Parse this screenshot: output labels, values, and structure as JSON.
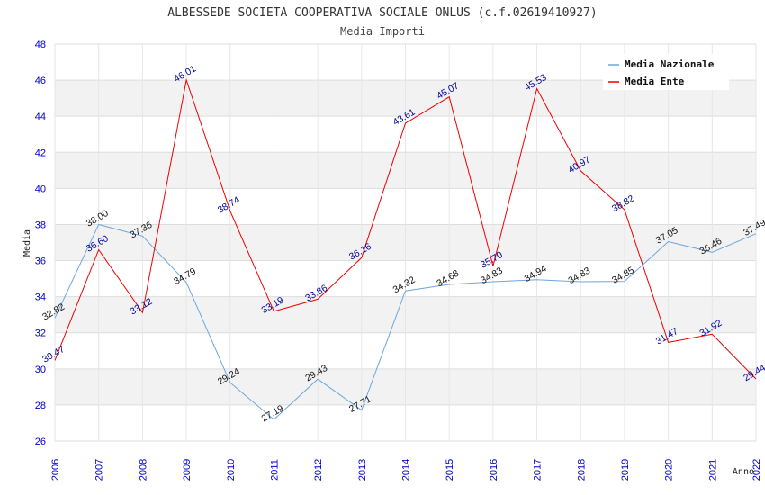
{
  "chart_data": {
    "type": "line",
    "title": "ALBESSEDE SOCIETA COOPERATIVA SOCIALE ONLUS (c.f.02619410927)",
    "subtitle": "Media Importi",
    "xlabel": "Anno",
    "ylabel": "Media",
    "ylim": [
      26,
      48
    ],
    "yticks": [
      "26",
      "28",
      "30",
      "32",
      "34",
      "36",
      "38",
      "40",
      "42",
      "44",
      "46",
      "48"
    ],
    "categories": [
      "2006",
      "2007",
      "2008",
      "2009",
      "2010",
      "2011",
      "2012",
      "2013",
      "2014",
      "2015",
      "2016",
      "2017",
      "2018",
      "2019",
      "2020",
      "2021",
      "2022"
    ],
    "legend_position": "top-right",
    "series": [
      {
        "name": "Media Nazionale",
        "color": "#6aa6e0",
        "values": [
          32.82,
          38.0,
          37.36,
          34.79,
          29.24,
          27.19,
          29.43,
          27.71,
          34.32,
          34.68,
          34.83,
          34.94,
          34.83,
          34.85,
          37.05,
          36.46,
          37.49
        ],
        "labels": [
          "32.82",
          "38.00",
          "37.36",
          "34.79",
          "29.24",
          "27.19",
          "29.43",
          "27.71",
          "34.32",
          "34.68",
          "34.83",
          "34.94",
          "34.83",
          "34.85",
          "37.05",
          "36.46",
          "37.49"
        ]
      },
      {
        "name": "Media Ente",
        "color": "#ee0000",
        "values": [
          30.47,
          36.6,
          33.12,
          46.01,
          38.74,
          33.19,
          33.86,
          36.16,
          43.61,
          45.07,
          35.7,
          45.53,
          40.97,
          38.82,
          31.47,
          31.92,
          29.44
        ],
        "labels": [
          "30.47",
          "36.60",
          "33.12",
          "46.01",
          "38.74",
          "33.19",
          "33.86",
          "36.16",
          "43.61",
          "45.07",
          "35.70",
          "45.53",
          "40.97",
          "38.82",
          "31.47",
          "31.92",
          "29.44"
        ]
      }
    ]
  }
}
